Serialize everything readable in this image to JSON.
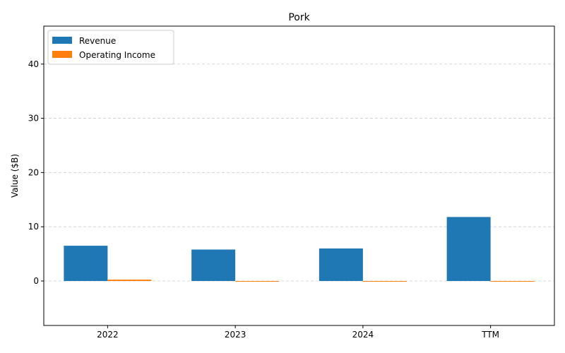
{
  "chart_data": {
    "type": "bar",
    "title": "Pork",
    "xlabel": "",
    "ylabel": "Value ($B)",
    "categories": [
      "2022",
      "2023",
      "2024",
      "TTM"
    ],
    "series": [
      {
        "name": "Revenue",
        "color": "#1f77b4",
        "values": [
          6.5,
          5.8,
          6.0,
          11.8
        ]
      },
      {
        "name": "Operating Income",
        "color": "#ff7f0e",
        "values": [
          0.25,
          -0.1,
          0.0,
          -0.1
        ]
      }
    ],
    "ylim": [
      -8.2,
      47
    ],
    "yticks": [
      0,
      10,
      20,
      30,
      40
    ],
    "grid": true,
    "legend_position": "top-left"
  }
}
